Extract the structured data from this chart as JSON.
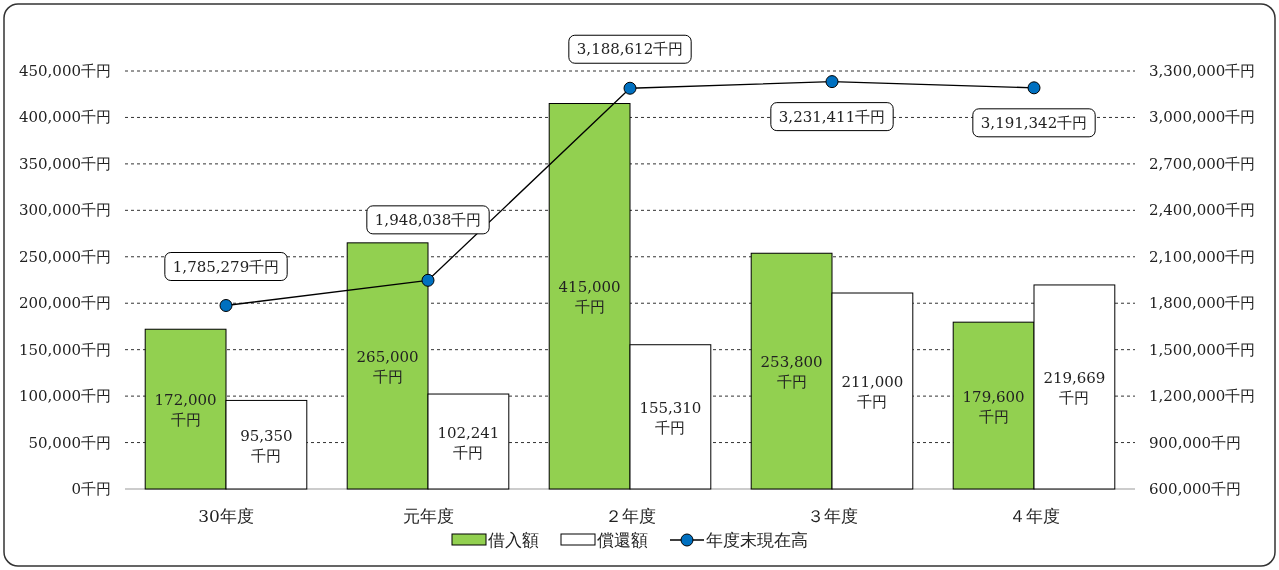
{
  "chart_data": {
    "type": "bar",
    "categories": [
      "30年度",
      "元年度",
      "２年度",
      "３年度",
      "４年度"
    ],
    "series": [
      {
        "name": "借入額",
        "color": "#92d050",
        "values": [
          172000,
          265000,
          415000,
          253800,
          179600
        ],
        "value_labels": [
          "172,000\n千円",
          "265,000\n千円",
          "415,000\n千円",
          "253,800\n千円",
          "179,600\n千円"
        ]
      },
      {
        "name": "償還額",
        "color": "#ffffff",
        "values": [
          95350,
          102241,
          155310,
          211000,
          219669
        ],
        "value_labels": [
          "95,350\n千円",
          "102,241\n千円",
          "155,310\n千円",
          "211,000\n千円",
          "219,669\n千円"
        ]
      },
      {
        "name": "年度末現在高",
        "type": "line",
        "axis": "y2",
        "color": "#0070c0",
        "marker": "circle",
        "values": [
          1785279,
          1948038,
          3188612,
          3231411,
          3191342
        ],
        "value_labels": [
          "1,785,279千円",
          "1,948,038千円",
          "3,188,612千円",
          "3,231,411千円",
          "3,191,342千円"
        ]
      }
    ],
    "ylim": [
      0,
      450000
    ],
    "yticks": [
      {
        "value": 0,
        "label": "0千円"
      },
      {
        "value": 50000,
        "label": "50,000千円"
      },
      {
        "value": 100000,
        "label": "100,000千円"
      },
      {
        "value": 150000,
        "label": "150,000千円"
      },
      {
        "value": 200000,
        "label": "200,000千円"
      },
      {
        "value": 250000,
        "label": "250,000千円"
      },
      {
        "value": 300000,
        "label": "300,000千円"
      },
      {
        "value": 350000,
        "label": "350,000千円"
      },
      {
        "value": 400000,
        "label": "400,000千円"
      },
      {
        "value": 450000,
        "label": "450,000千円"
      }
    ],
    "y2lim": [
      600000,
      3300000
    ],
    "y2ticks": [
      {
        "value": 600000,
        "label": "600,000千円"
      },
      {
        "value": 900000,
        "label": "900,000千円"
      },
      {
        "value": 1200000,
        "label": "1,200,000千円"
      },
      {
        "value": 1500000,
        "label": "1,500,000千円"
      },
      {
        "value": 1800000,
        "label": "1,800,000千円"
      },
      {
        "value": 2100000,
        "label": "2,100,000千円"
      },
      {
        "value": 2400000,
        "label": "2,400,000千円"
      },
      {
        "value": 2700000,
        "label": "2,700,000千円"
      },
      {
        "value": 3000000,
        "label": "3,000,000千円"
      },
      {
        "value": 3300000,
        "label": "3,300,000千円"
      }
    ],
    "grid": "y",
    "legend": "bottom"
  }
}
